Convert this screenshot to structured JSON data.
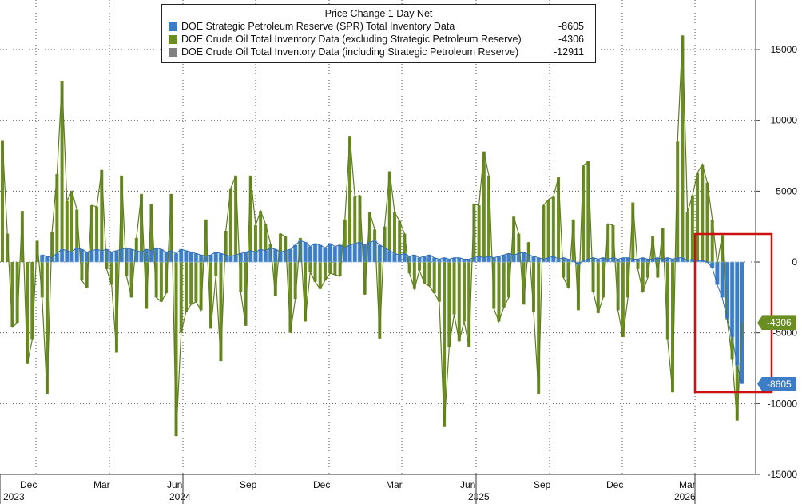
{
  "chart_data": {
    "type": "bar",
    "title": "Price Change 1 Day Net",
    "ylim": [
      -15000,
      18500
    ],
    "y_ticks": [
      15000,
      10000,
      5000,
      0,
      -5000,
      -10000,
      -15000
    ],
    "y_tick_labels": [
      "15000",
      "10000",
      "5000",
      "0",
      "-5000",
      "-10000",
      "-15000"
    ],
    "grid": true,
    "month_labels": [
      "Dec",
      "Mar",
      "Jun",
      "Sep",
      "Dec",
      "Mar",
      "Jun",
      "Sep",
      "Dec",
      "Mar"
    ],
    "year_labels": [
      "2023",
      "2024",
      "2025",
      "2026"
    ],
    "series": [
      {
        "name": "DOE Strategic Petroleum Reserve (SPR) Total Inventory Data",
        "color": "#3d7dc8",
        "last_value": "-8605",
        "values": [
          500,
          400,
          300,
          600,
          900,
          800,
          700,
          1000,
          900,
          700,
          800,
          900,
          800,
          900,
          700,
          800,
          900,
          1000,
          900,
          800,
          700,
          900,
          800,
          1000,
          900,
          700,
          800,
          600,
          900,
          800,
          700,
          600,
          500,
          400,
          500,
          700,
          600,
          500,
          400,
          500,
          600,
          700,
          800,
          700,
          900,
          800,
          1000,
          900,
          700,
          800,
          900,
          1200,
          1500,
          1400,
          1100,
          1300,
          1200,
          1000,
          1300,
          1100,
          1200,
          1000,
          1200,
          1300,
          1400,
          1200,
          1400,
          1500,
          1200,
          1000,
          800,
          600,
          500,
          600,
          400,
          500,
          300,
          400,
          500,
          300,
          200,
          300,
          200,
          300,
          300,
          200,
          200,
          300,
          400,
          300,
          400,
          300,
          400,
          500,
          600,
          500,
          600,
          700,
          500,
          400,
          300,
          200,
          300,
          400,
          200,
          300,
          200,
          100,
          -200,
          100,
          200,
          300,
          200,
          300,
          200,
          300,
          200,
          300,
          300,
          200,
          200,
          300,
          200,
          200,
          300,
          200,
          300,
          200,
          300,
          300,
          100,
          200,
          100,
          100,
          0,
          -400,
          -1600,
          -2500,
          -4000,
          -5300,
          -7300,
          -8605
        ]
      },
      {
        "name": "DOE Crude Oil Total Inventory Data (excluding Strategic Petroleum Reserve)",
        "color": "#6b8e23",
        "last_value": "-4306",
        "values": [
          8600,
          2000,
          -4600,
          -4300,
          3600,
          -7200,
          -5500,
          1500,
          -2500,
          -9300,
          2100,
          6200,
          12800,
          4300,
          5000,
          3700,
          -1300,
          -1800,
          4000,
          3900,
          6500,
          -500,
          -1600,
          -6400,
          6100,
          -1000,
          -2500,
          1700,
          4800,
          -3300,
          4100,
          -2500,
          -2800,
          -2200,
          4800,
          -12300,
          -5000,
          -3500,
          -3000,
          -2800,
          -3400,
          3000,
          -4700,
          -1000,
          -7000,
          2200,
          5200,
          6100,
          -2100,
          -4500,
          6100,
          2600,
          3600,
          2700,
          1300,
          -2400,
          2000,
          1800,
          -5000,
          -2600,
          1700,
          -4200,
          -700,
          -1400,
          -1900,
          -1300,
          -800,
          -900,
          -1000,
          3000,
          8900,
          4600,
          4700,
          -2300,
          3500,
          2300,
          -5400,
          2500,
          6400,
          3500,
          2900,
          2000,
          -800,
          -1900,
          -600,
          -1500,
          -1700,
          -2200,
          -2800,
          -11600,
          -6000,
          -3700,
          -5600,
          -4200,
          -6000,
          4100,
          4000,
          7800,
          6100,
          -3300,
          -4200,
          -3200,
          -2500,
          3200,
          2000,
          -3000,
          1400,
          -3500,
          -9300,
          4000,
          4400,
          4600,
          6000,
          -1100,
          -1800,
          3000,
          -3400,
          6800,
          7100,
          -2100,
          -3600,
          -2500,
          2700,
          2600,
          -3400,
          -5300,
          -2500,
          4200,
          -500,
          -2100,
          -1100,
          1800,
          -1100,
          2400,
          -5500,
          -9200,
          8500,
          16000,
          3500,
          4700,
          6300,
          6900,
          5600,
          3000,
          -100,
          1900,
          -4100,
          -6900,
          -11200,
          -4306
        ]
      },
      {
        "name": "DOE Crude Oil Total Inventory Data (including Strategic Petroleum Reserve)",
        "color": "#808080",
        "last_value": "-12911"
      }
    ]
  }
}
